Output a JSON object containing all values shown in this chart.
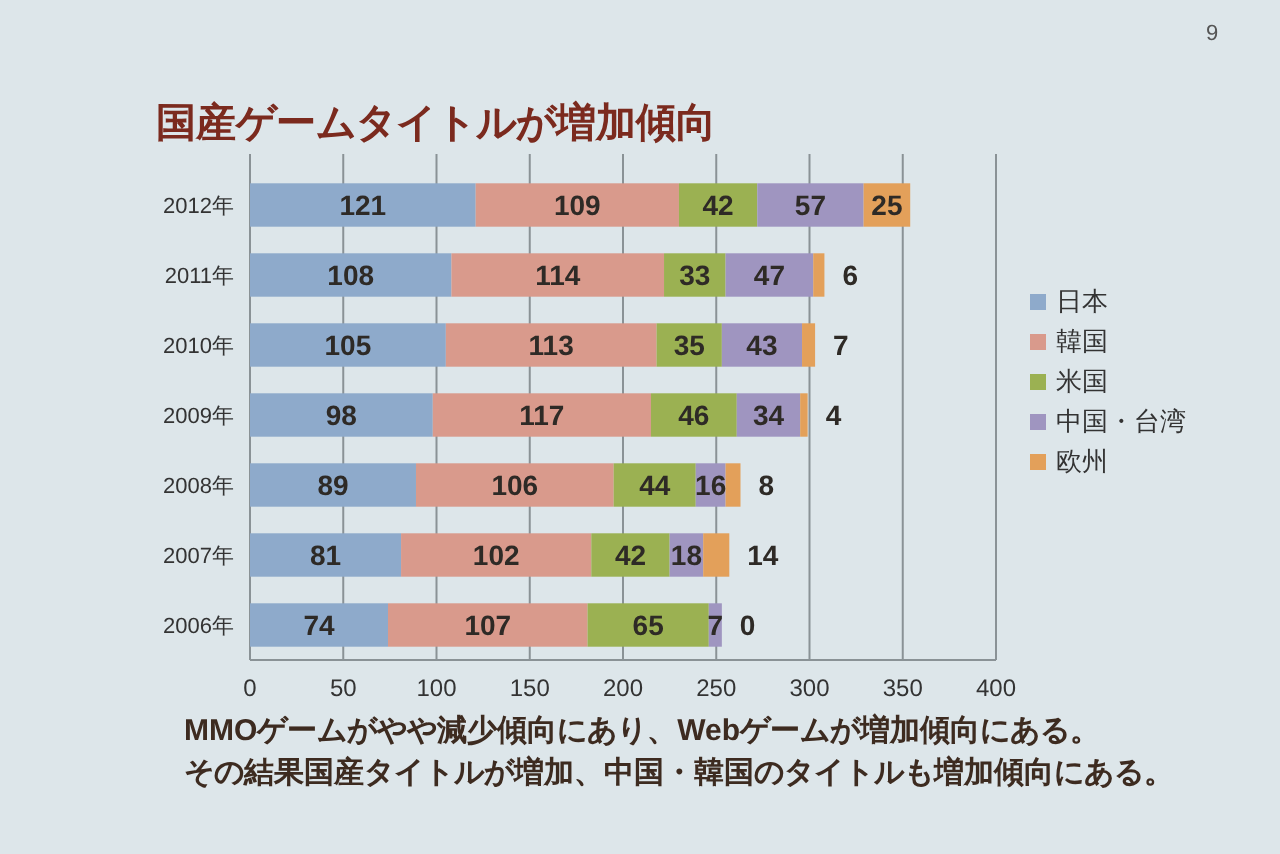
{
  "chart_data": {
    "type": "bar",
    "orientation": "horizontal",
    "stacked": true,
    "title": "国産ゲームタイトルが増加傾向",
    "categories": [
      "2012年",
      "2011年",
      "2010年",
      "2009年",
      "2008年",
      "2007年",
      "2006年"
    ],
    "series": [
      {
        "name": "日本",
        "color": "#8eaacb",
        "values": [
          121,
          108,
          105,
          98,
          89,
          81,
          74
        ]
      },
      {
        "name": "韓国",
        "color": "#d99a8c",
        "values": [
          109,
          114,
          113,
          117,
          106,
          102,
          107
        ]
      },
      {
        "name": "米国",
        "color": "#9bb152",
        "values": [
          42,
          33,
          35,
          46,
          44,
          42,
          65
        ]
      },
      {
        "name": "中国・台湾",
        "color": "#9f95c0",
        "values": [
          57,
          47,
          43,
          34,
          16,
          18,
          7
        ]
      },
      {
        "name": "欧州",
        "color": "#e3a05a",
        "values": [
          25,
          6,
          7,
          4,
          8,
          14,
          0
        ]
      }
    ],
    "xlim": [
      0,
      400
    ],
    "xticks": [
      0,
      50,
      100,
      150,
      200,
      250,
      300,
      350,
      400
    ],
    "grid": "x",
    "legend": "right",
    "data_labels": true,
    "annotations": [
      "9",
      "MMOゲームがやや減少傾向にあり、Webゲームが増加傾向にある。",
      "その結果国産タイトルが増加、中国・韓国のタイトルも増加傾向にある。"
    ]
  }
}
